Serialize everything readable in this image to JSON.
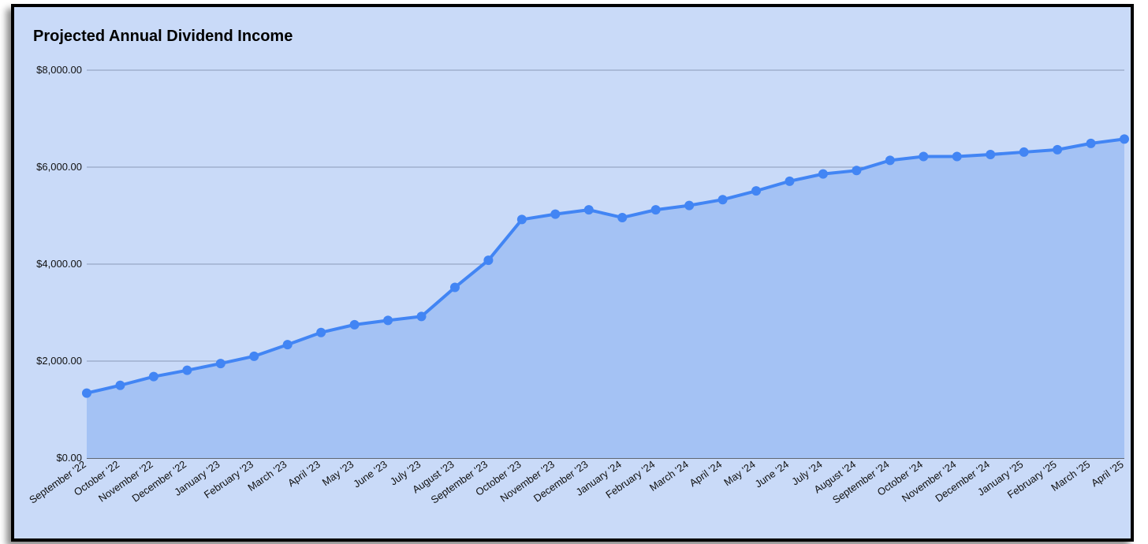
{
  "chart_data": {
    "type": "area",
    "title": "Projected Annual Dividend Income",
    "xlabel": "",
    "ylabel": "",
    "ylim": [
      0,
      8000
    ],
    "y_ticks": [
      {
        "value": 0,
        "label": "$0.00"
      },
      {
        "value": 2000,
        "label": "$2,000.00"
      },
      {
        "value": 4000,
        "label": "$4,000.00"
      },
      {
        "value": 6000,
        "label": "$6,000.00"
      },
      {
        "value": 8000,
        "label": "$8,000.00"
      }
    ],
    "grid": true,
    "legend": "none",
    "colors": {
      "background": "#c9daf8",
      "line": "#4285f4",
      "fill": "#a4c2f4",
      "grid": "#8a9bb8",
      "axis": "#222222"
    },
    "categories": [
      "September '22",
      "October '22",
      "November '22",
      "December '22",
      "January '23",
      "February '23",
      "March '23",
      "April '23",
      "May '23",
      "June '23",
      "July '23",
      "August '23",
      "September '23",
      "October '23",
      "November '23",
      "December '23",
      "January '24",
      "February '24",
      "March '24",
      "April '24",
      "May '24",
      "June '24",
      "July '24",
      "August '24",
      "September '24",
      "October '24",
      "November '24",
      "December '24",
      "January '25",
      "February '25",
      "March '25",
      "April '25"
    ],
    "values": [
      1340,
      1500,
      1680,
      1810,
      1950,
      2100,
      2340,
      2590,
      2750,
      2840,
      2920,
      3520,
      4080,
      4920,
      5030,
      5120,
      4960,
      5120,
      5210,
      5330,
      5510,
      5710,
      5860,
      5930,
      6140,
      6220,
      6220,
      6260,
      6310,
      6360,
      6490,
      6580
    ]
  }
}
